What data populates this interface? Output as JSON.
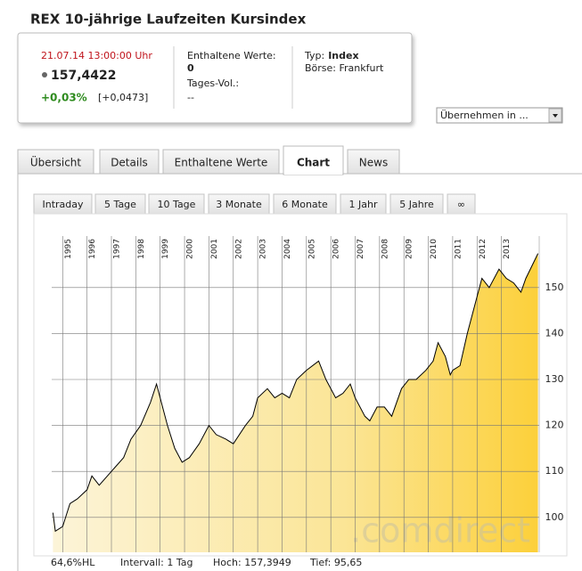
{
  "header": {
    "title": "REX 10-jährige Laufzeiten Kursindex"
  },
  "quote": {
    "timestamp": "21.07.14 13:00:00 Uhr",
    "price": "157,4422",
    "change_pct": "+0,03%",
    "change_abs": "[+0,0473]",
    "contained_label": "Enthaltene Werte:",
    "contained_value": "0",
    "volume_label": "Tages-Vol.:",
    "volume_value": "--",
    "type_label": "Typ:",
    "type_value": "Index",
    "exchange": "Börse: Frankfurt"
  },
  "dropdown": "Übernehmen in ...",
  "tabs": [
    "Übersicht",
    "Details",
    "Enthaltene Werte",
    "Chart",
    "News"
  ],
  "subtabs": [
    "Intraday",
    "5 Tage",
    "10 Tage",
    "3 Monate",
    "6 Monate",
    "1 Jahr",
    "5 Jahre",
    "∞"
  ],
  "chart_data": {
    "type": "area",
    "color": "#000000",
    "x": [
      1994.6,
      1994.7,
      1995.0,
      1995.3,
      1995.6,
      1996.0,
      1996.2,
      1996.5,
      1997.0,
      1997.5,
      1997.8,
      1998.2,
      1998.6,
      1998.85,
      1999.0,
      1999.3,
      1999.6,
      1999.9,
      2000.2,
      2000.6,
      2001.0,
      2001.3,
      2001.7,
      2002.0,
      2002.5,
      2002.8,
      2003.0,
      2003.4,
      2003.7,
      2004.0,
      2004.3,
      2004.6,
      2005.0,
      2005.5,
      2005.8,
      2006.2,
      2006.5,
      2006.8,
      2007.0,
      2007.4,
      2007.6,
      2007.9,
      2008.2,
      2008.5,
      2008.9,
      2009.2,
      2009.5,
      2009.9,
      2010.2,
      2010.4,
      2010.7,
      2010.9,
      2011.0,
      2011.3,
      2011.6,
      2011.9,
      2012.2,
      2012.5,
      2012.9,
      2013.2,
      2013.5,
      2013.8,
      2014.0,
      2014.5
    ],
    "values": [
      101,
      97,
      98,
      103,
      104,
      106,
      109,
      107,
      110,
      113,
      117,
      120,
      125,
      129,
      126,
      120,
      115,
      112,
      113,
      116,
      120,
      118,
      117,
      116,
      120,
      122,
      126,
      128,
      126,
      127,
      126,
      130,
      132,
      134,
      130,
      126,
      127,
      129,
      126,
      122,
      121,
      124,
      124,
      122,
      128,
      130,
      130,
      132,
      134,
      138,
      135,
      131,
      132,
      133,
      140,
      146,
      152,
      150,
      154,
      152,
      151,
      149,
      152,
      157.4
    ],
    "xlim": [
      1994.55,
      2014.55
    ],
    "ylim": [
      92.4,
      161.2
    ],
    "xticks": [
      1995,
      1996,
      1997,
      1998,
      1999,
      2000,
      2001,
      2002,
      2003,
      2004,
      2005,
      2006,
      2007,
      2008,
      2009,
      2010,
      2011,
      2012,
      2013
    ],
    "yticks": [
      100,
      110,
      120,
      130,
      140,
      150
    ],
    "grid": true,
    "watermark": ".comdirect",
    "stats": [
      "64,6%HL",
      "Intervall: 1 Tag",
      "Hoch: 157,3949",
      "Tief:  95,65"
    ]
  }
}
